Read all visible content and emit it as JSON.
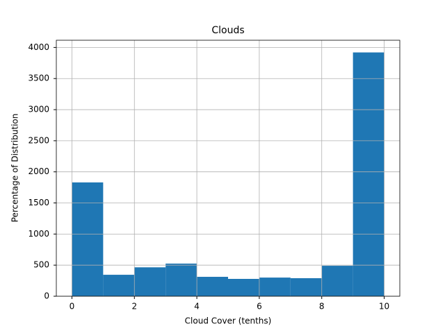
{
  "chart_data": {
    "type": "histogram",
    "title": "Clouds",
    "xlabel": "Cloud Cover (tenths)",
    "ylabel": "Percentage of Distribution",
    "bins": [
      0,
      1,
      2,
      3,
      4,
      5,
      6,
      7,
      8,
      9,
      10
    ],
    "values": [
      1830,
      345,
      465,
      525,
      312,
      279,
      300,
      290,
      490,
      3920
    ],
    "color": "#1f77b4",
    "xlim": [
      -0.5,
      10.5
    ],
    "xticks": [
      0,
      2,
      4,
      6,
      8,
      10
    ],
    "ylim": [
      0,
      4116
    ],
    "yticks": [
      0,
      500,
      1000,
      1500,
      2000,
      2500,
      3000,
      3500,
      4000
    ],
    "grid": true
  }
}
